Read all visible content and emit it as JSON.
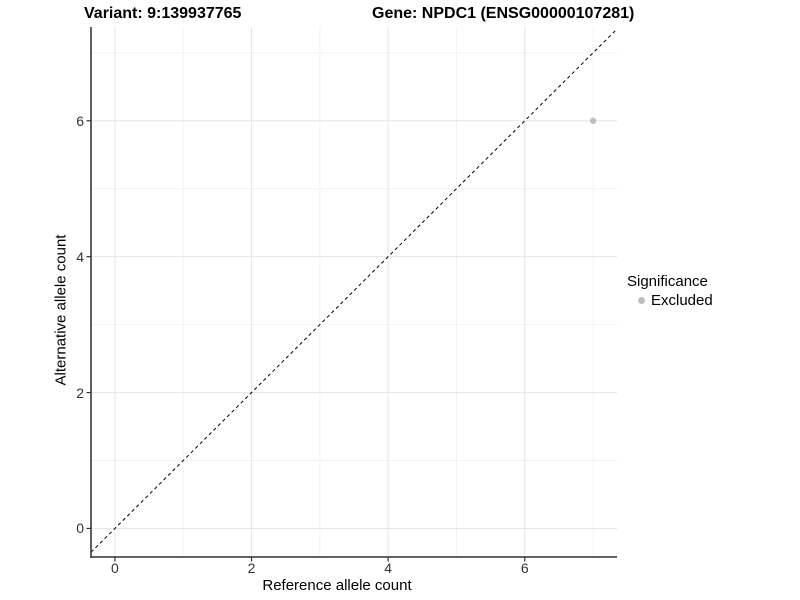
{
  "header": {
    "variant_title": "Variant: 9:139937765",
    "gene_title": "Gene: NPDC1 (ENSG00000107281)"
  },
  "chart_data": {
    "type": "scatter",
    "title": "Variant: 9:139937765  /  Gene: NPDC1 (ENSG00000107281)",
    "xlabel": "Reference allele count",
    "ylabel": "Alternative allele count",
    "xlim": [
      -0.35,
      7.35
    ],
    "ylim": [
      -0.42,
      7.38
    ],
    "x_major_ticks": [
      0,
      2,
      4,
      6
    ],
    "y_major_ticks": [
      0,
      2,
      4,
      6
    ],
    "x_minor_gridlines": [
      1,
      3,
      5,
      7
    ],
    "y_minor_gridlines": [
      1,
      3,
      5,
      7
    ],
    "grid": "major and minor, light gray on white panel",
    "reference_line": {
      "equation": "y = x",
      "style": "dashed",
      "color": "#000000"
    },
    "series": [
      {
        "name": "Excluded",
        "color": "#bebebe",
        "points": [
          {
            "x": 7,
            "y": 6
          }
        ]
      }
    ],
    "legend": {
      "title": "Significance",
      "position": "right",
      "entries": [
        {
          "label": "Excluded",
          "color": "#bebebe"
        }
      ]
    },
    "colors": {
      "panel_background": "#ffffff",
      "grid_major": "#e5e5e5",
      "grid_minor": "#f2f2f2",
      "axis_line": "#4d4d4d",
      "tick_mark": "#333333",
      "tick_text": "#333333",
      "label_text": "#000000",
      "point": "#bebebe",
      "diagonal_line": "#000000"
    }
  }
}
